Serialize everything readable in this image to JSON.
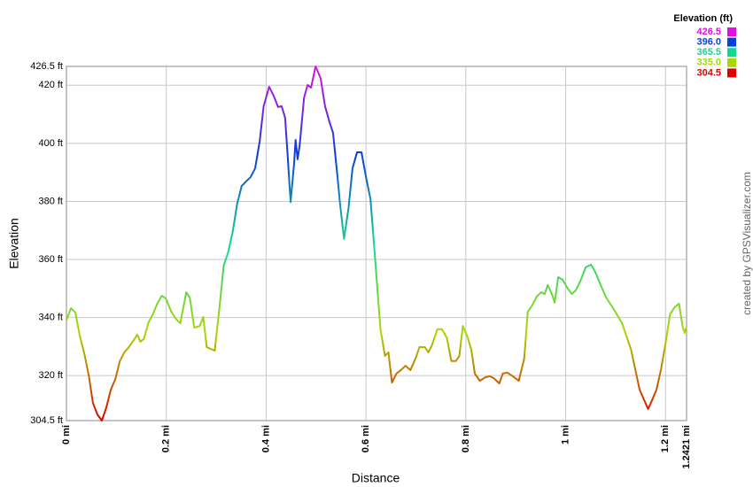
{
  "chart_data": {
    "type": "line",
    "x_label": "Distance",
    "y_label": "Elevation",
    "credit": "created by GPSVisualizer.com",
    "xlim": [
      0,
      1.2421
    ],
    "ylim": [
      304.5,
      426.5
    ],
    "xticks": [
      {
        "value": 0,
        "label": "0 mi"
      },
      {
        "value": 0.2,
        "label": "0.2 mi"
      },
      {
        "value": 0.4,
        "label": "0.4 mi"
      },
      {
        "value": 0.6,
        "label": "0.6 mi"
      },
      {
        "value": 0.8,
        "label": "0.8 mi"
      },
      {
        "value": 1,
        "label": "1 mi"
      },
      {
        "value": 1.2,
        "label": "1.2 mi"
      },
      {
        "value": 1.2421,
        "label": "1.2421 mi"
      }
    ],
    "yticks": [
      {
        "value": 304.5,
        "label": "304.5 ft"
      },
      {
        "value": 320,
        "label": "320 ft"
      },
      {
        "value": 340,
        "label": "340 ft"
      },
      {
        "value": 360,
        "label": "360 ft"
      },
      {
        "value": 380,
        "label": "380 ft"
      },
      {
        "value": 400,
        "label": "400 ft"
      },
      {
        "value": 420,
        "label": "420 ft"
      },
      {
        "value": 426.5,
        "label": "426.5 ft"
      }
    ],
    "grid": true,
    "legend": {
      "title": "Elevation (ft)",
      "position": "top-right",
      "entries": [
        {
          "value": 426.5,
          "label": "426.5",
          "color": "#e010e0"
        },
        {
          "value": 396.0,
          "label": "396.0",
          "color": "#0a3ed8"
        },
        {
          "value": 365.5,
          "label": "365.5",
          "color": "#10d890"
        },
        {
          "value": 335.0,
          "label": "335.0",
          "color": "#a8d800"
        },
        {
          "value": 304.5,
          "label": "304.5",
          "color": "#e00000"
        }
      ]
    },
    "x": [
      0,
      0.009,
      0.018,
      0.027,
      0.036,
      0.045,
      0.053,
      0.062,
      0.071,
      0.08,
      0.089,
      0.098,
      0.107,
      0.116,
      0.125,
      0.134,
      0.142,
      0.148,
      0.155,
      0.164,
      0.173,
      0.182,
      0.191,
      0.199,
      0.21,
      0.219,
      0.228,
      0.235,
      0.24,
      0.247,
      0.256,
      0.267,
      0.274,
      0.281,
      0.289,
      0.297,
      0.306,
      0.315,
      0.324,
      0.333,
      0.342,
      0.351,
      0.36,
      0.369,
      0.378,
      0.387,
      0.395,
      0.406,
      0.415,
      0.424,
      0.431,
      0.438,
      0.443,
      0.449,
      0.456,
      0.459,
      0.463,
      0.467,
      0.476,
      0.483,
      0.49,
      0.499,
      0.509,
      0.518,
      0.527,
      0.534,
      0.543,
      0.548,
      0.556,
      0.565,
      0.573,
      0.582,
      0.591,
      0.6,
      0.609,
      0.618,
      0.629,
      0.638,
      0.645,
      0.652,
      0.661,
      0.67,
      0.679,
      0.689,
      0.7,
      0.707,
      0.718,
      0.725,
      0.732,
      0.743,
      0.752,
      0.762,
      0.771,
      0.78,
      0.787,
      0.794,
      0.803,
      0.811,
      0.818,
      0.828,
      0.839,
      0.848,
      0.856,
      0.867,
      0.874,
      0.883,
      0.894,
      0.906,
      0.917,
      0.924,
      0.933,
      0.942,
      0.951,
      0.958,
      0.964,
      0.973,
      0.978,
      0.985,
      0.994,
      1.003,
      1.012,
      1.02,
      1.029,
      1.04,
      1.051,
      1.06,
      1.07,
      1.081,
      1.095,
      1.113,
      1.131,
      1.148,
      1.165,
      1.173,
      1.182,
      1.191,
      1.2,
      1.209,
      1.218,
      1.227,
      1.234,
      1.238,
      1.2421
    ],
    "values": [
      339,
      343.2,
      341.7,
      333.5,
      327.4,
      319.8,
      310.6,
      306.6,
      304.5,
      309.1,
      315.2,
      318.8,
      325,
      328,
      329.8,
      332,
      334.1,
      331.7,
      332.6,
      338.1,
      341.1,
      344.8,
      347.5,
      346.6,
      342,
      339.6,
      338,
      344.2,
      348.7,
      346.9,
      336.5,
      337.1,
      340.2,
      329.8,
      329.2,
      328.6,
      342.6,
      357.9,
      362.5,
      369.5,
      379.2,
      385.3,
      386.9,
      388.4,
      391.4,
      400.6,
      412.8,
      419.5,
      416.4,
      412.5,
      412.8,
      408.8,
      396,
      379.8,
      393,
      401.2,
      394.5,
      399.1,
      415.8,
      420.1,
      419.2,
      426.5,
      422.5,
      412.8,
      407.3,
      403.6,
      388.4,
      379.2,
      367.1,
      377.7,
      391.4,
      396.9,
      396.9,
      388.4,
      380.8,
      360.9,
      335.9,
      326.8,
      328,
      317.6,
      320.7,
      321.9,
      323.4,
      321.9,
      326.2,
      329.8,
      329.8,
      328,
      330.4,
      336,
      336,
      333,
      325,
      325,
      326.8,
      337.1,
      333.5,
      328.9,
      320.7,
      318.2,
      319.4,
      319.8,
      319.1,
      317.3,
      320.7,
      321,
      319.8,
      318.2,
      325.9,
      342,
      344.2,
      347.2,
      348.7,
      348.1,
      351.2,
      347.8,
      345.1,
      353.9,
      353,
      350.3,
      348.1,
      349.3,
      352.4,
      357.3,
      358.2,
      355.4,
      351.2,
      346.9,
      343.2,
      338,
      328.9,
      315.2,
      308.5,
      311.5,
      315.2,
      322.2,
      331.1,
      341.1,
      343.5,
      344.8,
      337.1,
      334.7,
      336.8
    ]
  }
}
